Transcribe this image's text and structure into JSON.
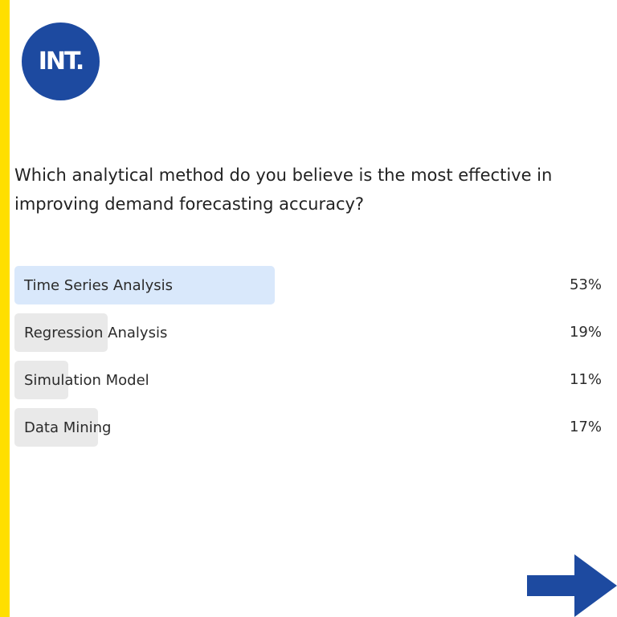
{
  "brand": {
    "logo_text": "INT.",
    "accent_stripe_color": "#ffdf00",
    "logo_color": "#1d4aa0"
  },
  "poll": {
    "question": "Which analytical method do you believe is the most effective in improving demand forecasting accuracy?",
    "options": [
      {
        "label": "Time Series Analysis",
        "percent_text": "53%",
        "percent": 53,
        "selected": true
      },
      {
        "label": "Regression Analysis",
        "percent_text": "19%",
        "percent": 19,
        "selected": false
      },
      {
        "label": "Simulation Model",
        "percent_text": "11%",
        "percent": 11,
        "selected": false
      },
      {
        "label": "Data Mining",
        "percent_text": "17%",
        "percent": 17,
        "selected": false
      }
    ],
    "selected_color": "#d9e8fb",
    "bar_color": "#e9e9e9"
  },
  "navigation": {
    "next_icon": "arrow-right-icon",
    "arrow_color": "#1d4aa0"
  }
}
